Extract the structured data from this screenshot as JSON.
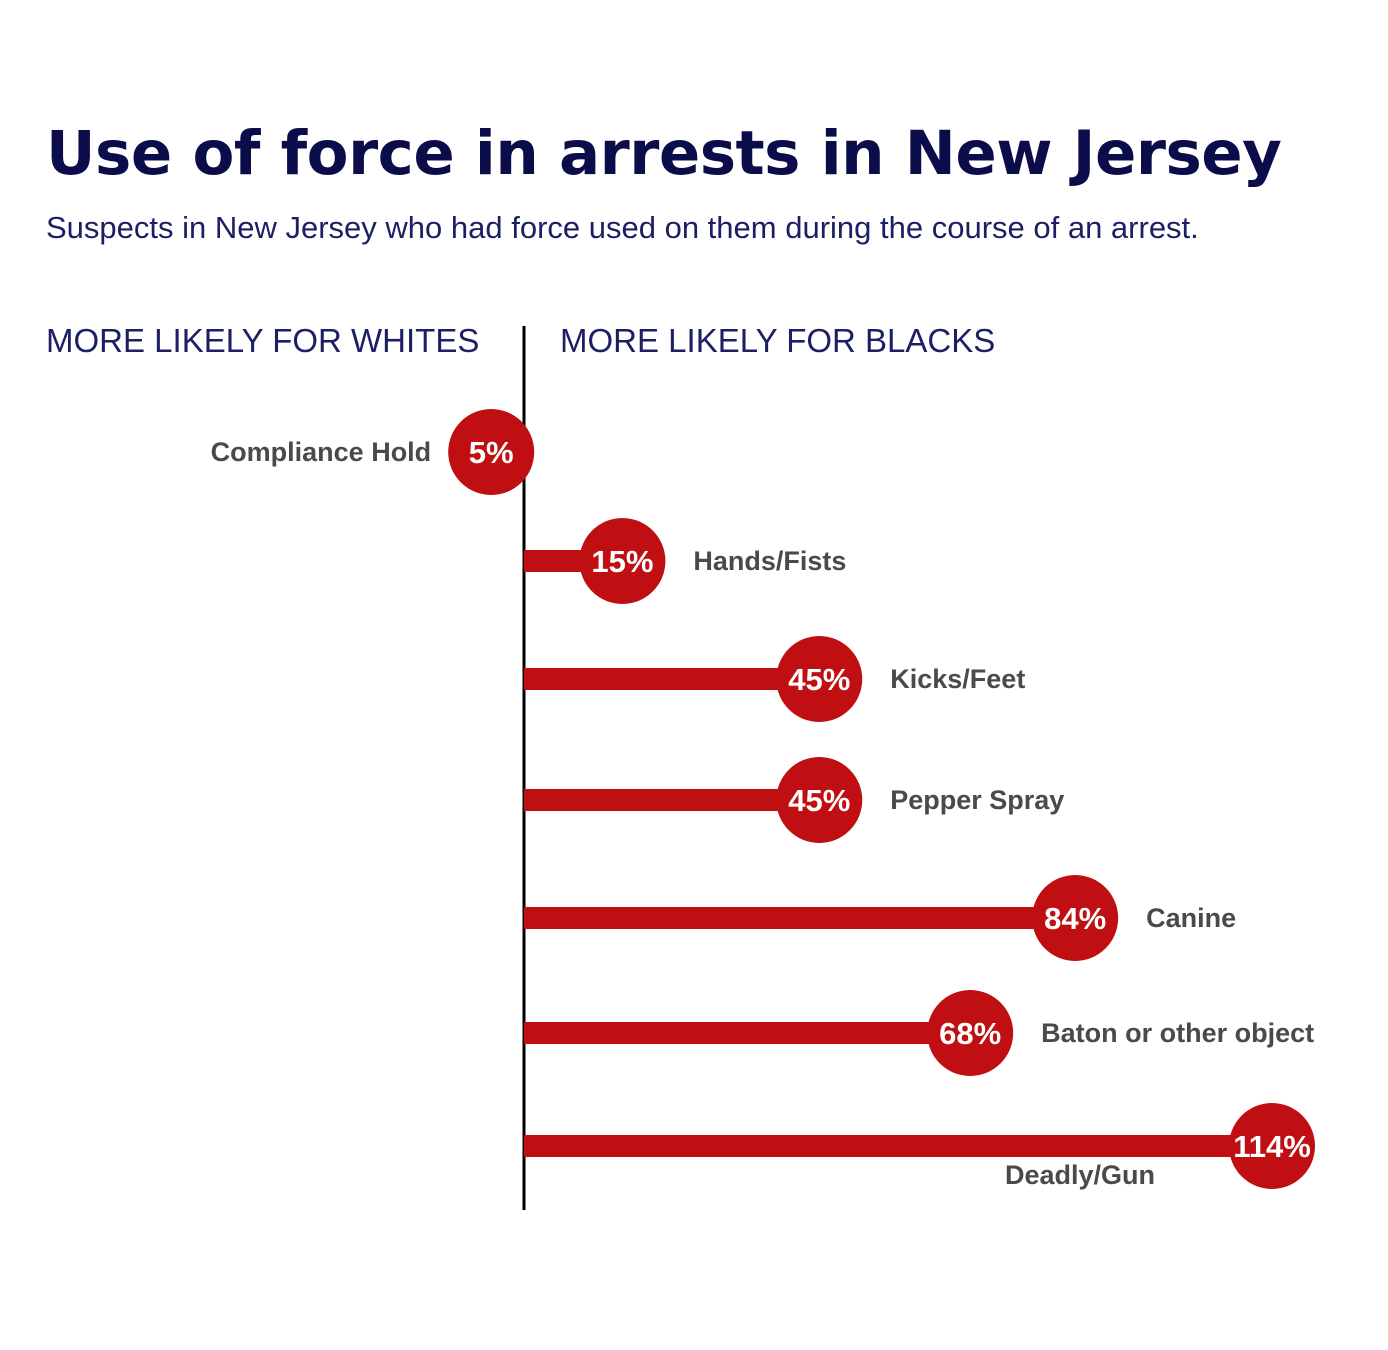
{
  "chart_data": {
    "type": "bar",
    "title": "Use of force in arrests in New Jersey",
    "subtitle": "Suspects in New Jersey who had force used on them during the course of an arrest.",
    "left_side_label": "MORE LIKELY FOR WHITES",
    "right_side_label": "MORE LIKELY FOR BLACKS",
    "orientation": "horizontal-diverging",
    "colors": {
      "bar": "#c00f12",
      "axis": "#000000",
      "title": "#0b0c4a",
      "label": "#4a4a4a"
    },
    "categories": [
      "Compliance Hold",
      "Hands/Fists",
      "Kicks/Feet",
      "Pepper Spray",
      "Canine",
      "Baton or other object",
      "Deadly/Gun"
    ],
    "values": [
      -5,
      15,
      45,
      45,
      84,
      68,
      114
    ],
    "value_labels": [
      "5%",
      "15%",
      "45%",
      "45%",
      "84%",
      "68%",
      "114%"
    ],
    "label_placement": [
      "left",
      "right",
      "right",
      "right",
      "right",
      "right",
      "below"
    ]
  }
}
